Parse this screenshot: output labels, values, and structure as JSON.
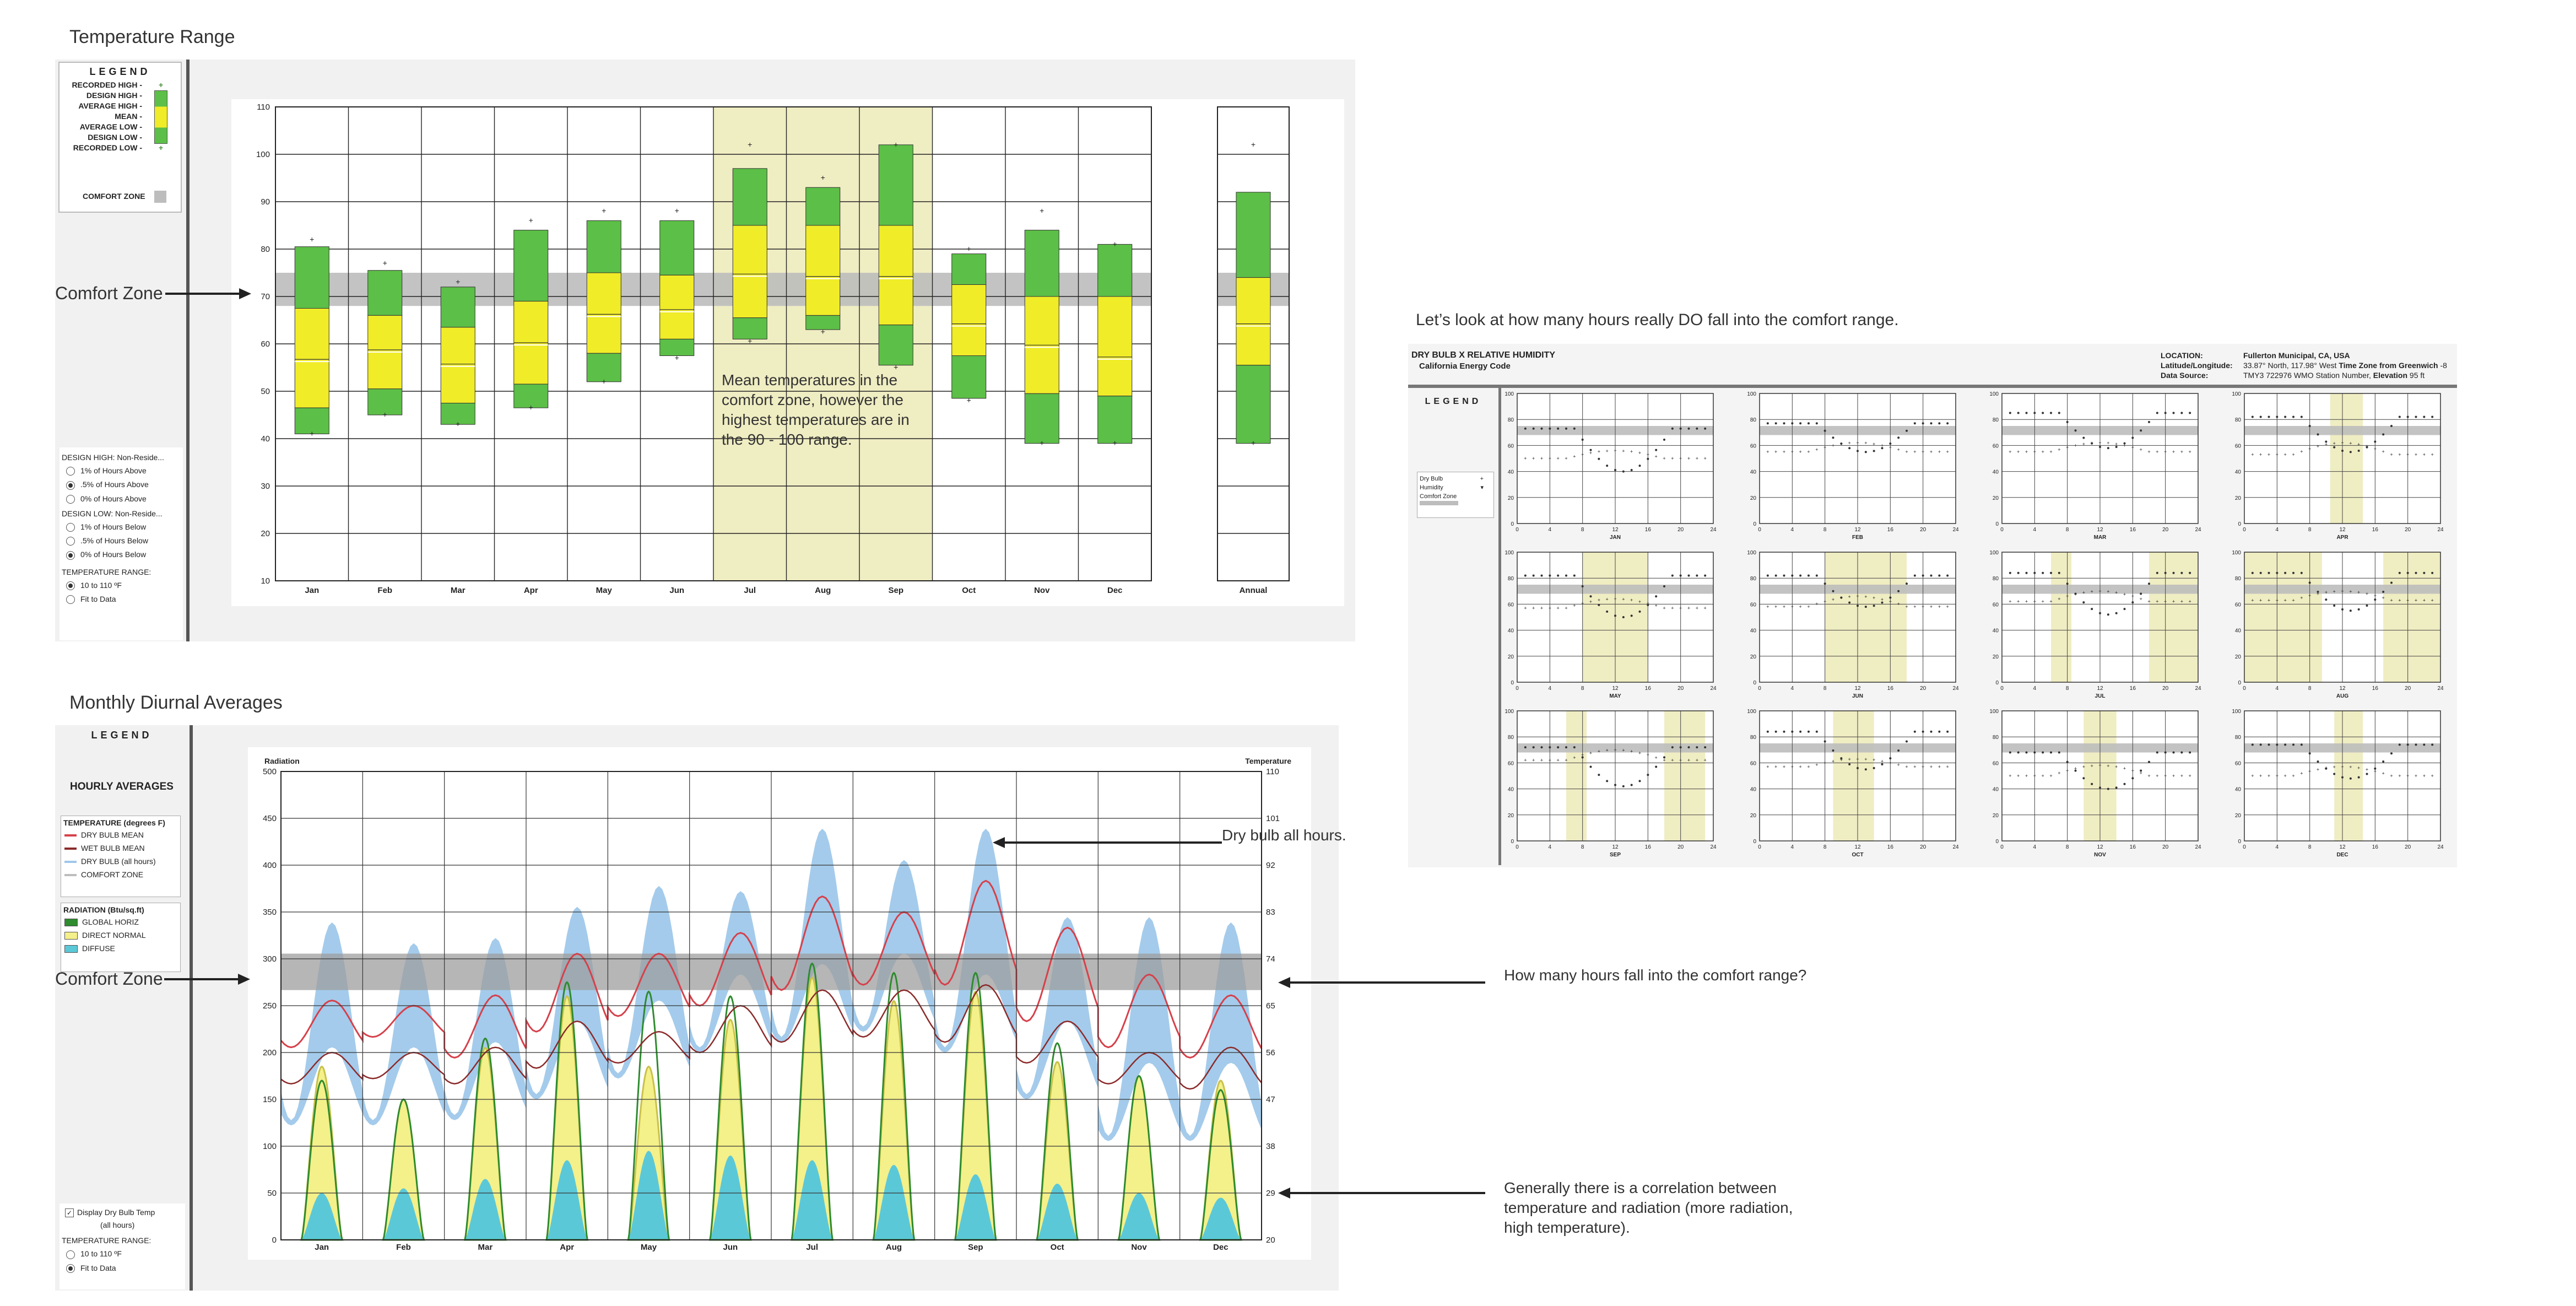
{
  "titles": {
    "temperature_range": "Temperature Range",
    "monthly_diurnal": "Monthly Diurnal Averages",
    "comfort_question": "Let’s look at how many hours really DO fall into the comfort range."
  },
  "annotations": {
    "comfort_zone_1": "Comfort Zone",
    "comfort_zone_2": "Comfort Zone",
    "mean_temps": "Mean temperatures in the comfort zone, however the highest temperatures are in the 90 - 100 range.",
    "dry_bulb_all_hours": "Dry bulb all hours.",
    "how_many_hours": "How many hours fall into the comfort range?",
    "correlation": "Generally there is a correlation between temperature and radiation (more radiation, high temperature)."
  },
  "temp_legend": {
    "title": "LEGEND",
    "items": [
      {
        "label": "RECORDED HIGH -",
        "mark": "+"
      },
      {
        "label": "DESIGN HIGH -",
        "mark": ""
      },
      {
        "label": "AVERAGE HIGH -",
        "mark": ""
      },
      {
        "label": "MEAN -",
        "mark": ""
      },
      {
        "label": "AVERAGE LOW -",
        "mark": ""
      },
      {
        "label": "DESIGN LOW -",
        "mark": ""
      },
      {
        "label": "RECORDED LOW -",
        "mark": "+"
      }
    ],
    "comfort": "COMFORT ZONE",
    "colors": {
      "green": "#5cbf47",
      "yellow": "#f0ec28",
      "comfort": "#bdbdbd",
      "highlight": "#efedc2"
    }
  },
  "temp_controls": {
    "design_high": "DESIGN HIGH:  Non-Reside...",
    "design_high_opts": [
      "1% of Hours Above",
      ".5% of Hours Above",
      "0% of Hours Above"
    ],
    "design_high_selected": 1,
    "design_low": "DESIGN LOW:  Non-Reside...",
    "design_low_opts": [
      "1% of Hours Below",
      ".5% of Hours Below",
      "0% of Hours Below"
    ],
    "design_low_selected": 2,
    "range_label": "TEMPERATURE RANGE:",
    "range_opts": [
      "10 to 110 ºF",
      "Fit to Data"
    ],
    "range_selected": 0
  },
  "diurnal_legend": {
    "title": "LEGEND",
    "heading": "HOURLY AVERAGES",
    "temp_header": "TEMPERATURE (degrees F)",
    "temp_items": [
      {
        "label": "DRY BULB MEAN",
        "color": "#d6404a"
      },
      {
        "label": "WET BULB MEAN",
        "color": "#8b2a2a"
      },
      {
        "label": "DRY BULB (all hours)",
        "color": "#9fc8ea"
      },
      {
        "label": "COMFORT ZONE",
        "color": "#bdbdbd"
      }
    ],
    "rad_header": "RADIATION (Btu/sq.ft)",
    "rad_items": [
      {
        "label": "GLOBAL HORIZ",
        "color": "#2e8b2e"
      },
      {
        "label": "DIRECT NORMAL",
        "color": "#f4f08a"
      },
      {
        "label": "DIFFUSE",
        "color": "#5bc8d8"
      }
    ],
    "display_check": "Display Dry Bulb Temp",
    "display_check2": "(all hours)",
    "range_label": "TEMPERATURE RANGE:",
    "range_opts": [
      "10 to 110 ºF",
      "Fit to Data"
    ],
    "range_selected": 1
  },
  "chart_data": [
    {
      "type": "bar",
      "title": "",
      "categories": [
        "Jan",
        "Feb",
        "Mar",
        "Apr",
        "May",
        "Jun",
        "Jul",
        "Aug",
        "Sep",
        "Oct",
        "Nov",
        "Dec",
        "Annual"
      ],
      "ylim": [
        10,
        110
      ],
      "yticks": [
        10,
        20,
        30,
        40,
        50,
        60,
        70,
        80,
        90,
        100,
        110
      ],
      "comfort_zone": [
        68,
        75
      ],
      "highlighted": [
        "Jul",
        "Aug",
        "Sep"
      ],
      "series": [
        {
          "name": "RECORDED HIGH",
          "values": [
            82,
            77,
            73,
            86,
            88,
            88,
            102,
            95,
            102,
            80,
            88,
            81,
            102
          ]
        },
        {
          "name": "DESIGN HIGH",
          "values": [
            80.5,
            75.5,
            72,
            84,
            86,
            86,
            97,
            93,
            102,
            79,
            84,
            81,
            92
          ]
        },
        {
          "name": "AVERAGE HIGH",
          "values": [
            67.5,
            66,
            63.5,
            69,
            75,
            74.5,
            85,
            85,
            85,
            72.5,
            70,
            70,
            74
          ]
        },
        {
          "name": "MEAN",
          "values": [
            56.5,
            58.5,
            55.5,
            60,
            66,
            67,
            74.5,
            74,
            74,
            64,
            59.5,
            57,
            64
          ]
        },
        {
          "name": "AVERAGE LOW",
          "values": [
            46.5,
            50.5,
            47.5,
            51.5,
            58,
            61,
            65.5,
            66,
            64,
            57.5,
            49.5,
            49,
            55.5
          ]
        },
        {
          "name": "DESIGN LOW",
          "values": [
            41,
            45,
            43,
            46.5,
            52,
            57.5,
            61,
            63,
            55.5,
            48.5,
            39,
            39,
            39
          ]
        },
        {
          "name": "RECORDED LOW",
          "values": [
            41,
            45,
            43,
            46.5,
            52,
            57,
            60.5,
            62.5,
            55,
            48,
            39,
            39,
            39
          ]
        }
      ]
    },
    {
      "type": "line",
      "title": "",
      "categories": [
        "Jan",
        "Feb",
        "Mar",
        "Apr",
        "May",
        "Jun",
        "Jul",
        "Aug",
        "Sep",
        "Oct",
        "Nov",
        "Dec"
      ],
      "ylabel": "Radiation",
      "y2label": "Temperature",
      "ylim": [
        0,
        500
      ],
      "yticks": [
        0,
        50,
        100,
        150,
        200,
        250,
        300,
        350,
        400,
        450,
        500
      ],
      "y2ticks": [
        20,
        29,
        38,
        47,
        56,
        65,
        74,
        83,
        92,
        101,
        110
      ],
      "comfort_zone_temp": [
        68,
        75
      ],
      "series": [
        {
          "name": "DRY BULB MEAN",
          "unit": "F",
          "min": [
            57,
            59,
            55,
            60,
            63,
            65,
            68,
            69,
            69,
            62,
            57,
            55
          ],
          "max": [
            66,
            65,
            67,
            75,
            75,
            79,
            86,
            83,
            89,
            80,
            71,
            67
          ]
        },
        {
          "name": "WET BULB MEAN",
          "unit": "F",
          "min": [
            50,
            51,
            50,
            53,
            54,
            56,
            58,
            59,
            58,
            54,
            50,
            49
          ],
          "max": [
            56,
            56,
            57,
            62,
            60,
            65,
            68,
            68,
            69,
            62,
            56,
            57
          ]
        },
        {
          "name": "DRY BULB (all hours)",
          "unit": "F",
          "min": [
            43,
            43,
            44,
            48,
            52,
            57,
            59,
            61,
            57,
            48,
            40,
            40
          ],
          "max": [
            81,
            77,
            78,
            84,
            88,
            87,
            99,
            93,
            99,
            82,
            82,
            81
          ]
        },
        {
          "name": "GLOBAL HORIZ",
          "unit": "Btu/sq.ft",
          "max": [
            170,
            150,
            215,
            275,
            265,
            260,
            295,
            285,
            285,
            210,
            175,
            160
          ]
        },
        {
          "name": "DIRECT NORMAL",
          "unit": "Btu/sq.ft",
          "max": [
            185,
            150,
            205,
            260,
            185,
            235,
            280,
            255,
            265,
            190,
            175,
            170
          ]
        },
        {
          "name": "DIFFUSE",
          "unit": "Btu/sq.ft",
          "max": [
            50,
            55,
            65,
            85,
            95,
            90,
            85,
            80,
            70,
            60,
            50,
            45
          ]
        }
      ]
    },
    {
      "type": "scatter",
      "title": "DRY BULB  X  RELATIVE HUMIDITY",
      "subtitle": "California Energy Code",
      "info": {
        "location_label": "LOCATION:",
        "location": "Fullerton Municipal, CA, USA",
        "latlon_label": "Latitude/Longitude:",
        "latlon": "33.87° North, 117.98° West",
        "tz_label": "Time Zone from Greenwich",
        "tz": "-8",
        "source_label": "Data Source:",
        "source": "TMY3      722976 WMO Station Number,",
        "elevation_label": "Elevation",
        "elevation": "95 ft"
      },
      "legend": {
        "title": "LEGEND",
        "items": [
          "Dry Bulb",
          "Humidity",
          "Comfort Zone"
        ]
      },
      "months": [
        "JAN",
        "FEB",
        "MAR",
        "APR",
        "MAY",
        "JUN",
        "JUL",
        "AUG",
        "SEP",
        "OCT",
        "NOV",
        "DEC"
      ],
      "ylim": [
        0,
        100
      ],
      "yticks": [
        0,
        20,
        40,
        60,
        80,
        100
      ],
      "xticks": [
        0,
        4,
        8,
        12,
        16,
        20,
        24
      ],
      "comfort_zone": [
        68,
        75
      ],
      "comfort_hours": [
        [],
        [],
        [],
        [
          [
            10.5,
            14.5
          ]
        ],
        [
          [
            8,
            16
          ]
        ],
        [
          [
            8,
            18
          ]
        ],
        [
          [
            6,
            8.5
          ],
          [
            18,
            24
          ]
        ],
        [
          [
            0,
            9.5
          ],
          [
            17,
            24
          ]
        ],
        [
          [
            6,
            8.5
          ],
          [
            18,
            23
          ]
        ],
        [
          [
            9,
            14
          ]
        ],
        [
          [
            10,
            14
          ]
        ],
        [
          [
            11,
            14.5
          ]
        ]
      ],
      "drybulb_day": [
        [
          56,
          50
        ],
        [
          62,
          55
        ],
        [
          62,
          55
        ],
        [
          62,
          53
        ],
        [
          64,
          57
        ],
        [
          66,
          58
        ],
        [
          70,
          62
        ],
        [
          70,
          63
        ],
        [
          70,
          62
        ],
        [
          63,
          57
        ],
        [
          58,
          50
        ],
        [
          57,
          50
        ]
      ],
      "humidity_day": [
        [
          73,
          40
        ],
        [
          77,
          55
        ],
        [
          85,
          58
        ],
        [
          82,
          55
        ],
        [
          82,
          50
        ],
        [
          82,
          58
        ],
        [
          84,
          52
        ],
        [
          84,
          55
        ],
        [
          72,
          42
        ],
        [
          84,
          55
        ],
        [
          68,
          40
        ],
        [
          74,
          48
        ]
      ]
    }
  ]
}
